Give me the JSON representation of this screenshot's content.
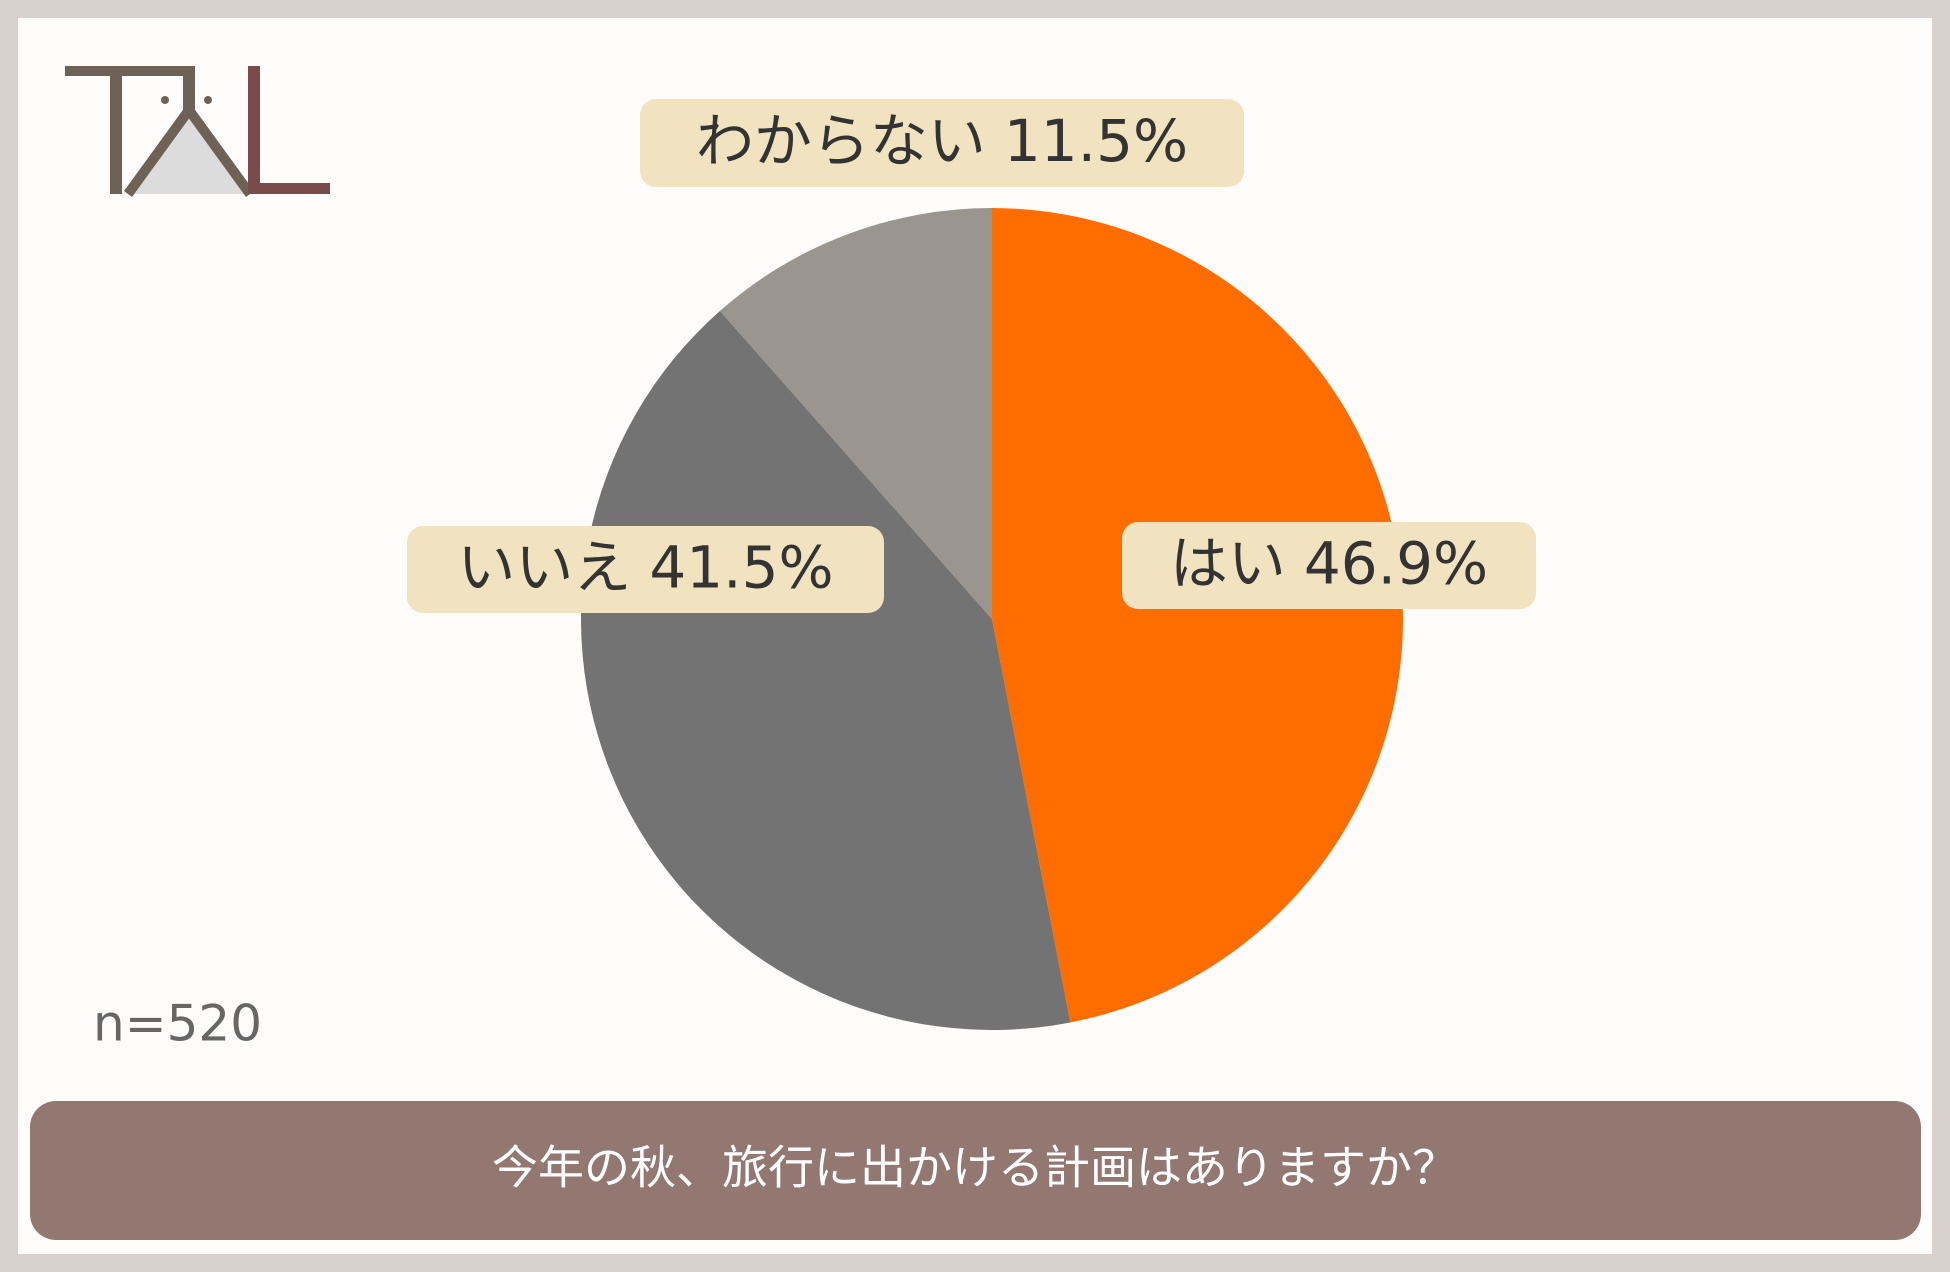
{
  "chart_data": {
    "type": "pie",
    "title": "今年の秋、旅行に出かける計画はありますか？",
    "annotation": "n=520",
    "categories": [
      "はい",
      "いいえ",
      "わからない"
    ],
    "values": [
      46.9,
      41.5,
      11.5
    ],
    "value_labels": [
      "46.9%",
      "41.5%",
      "11.5%"
    ],
    "colors": [
      "#ff6d00",
      "#737373",
      "#9a958e"
    ]
  }
}
